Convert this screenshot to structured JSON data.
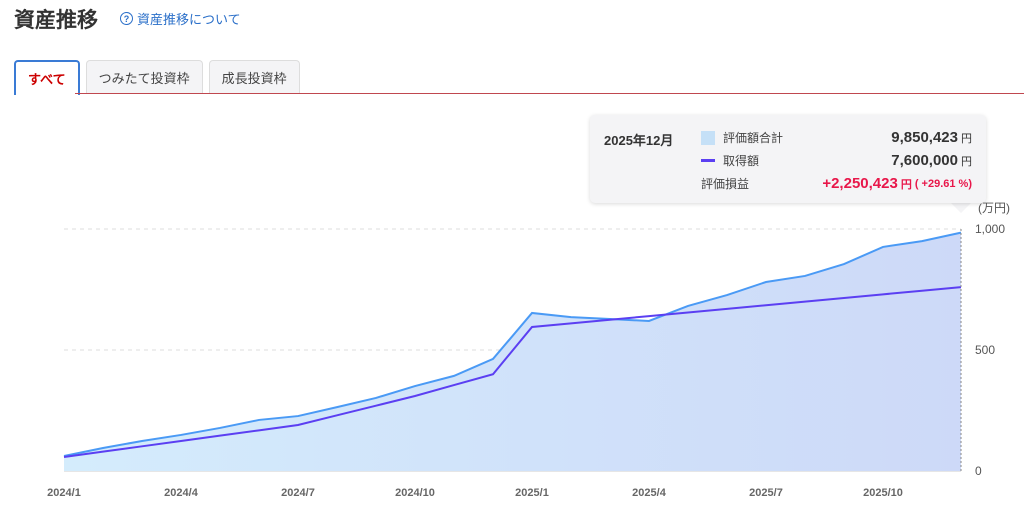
{
  "header": {
    "title": "資産推移",
    "help_link": "資産推移について",
    "help_icon": "question-circle-icon"
  },
  "tabs": [
    {
      "label": "すべて",
      "active": true
    },
    {
      "label": "つみたて投資枠",
      "active": false
    },
    {
      "label": "成長投資枠",
      "active": false
    }
  ],
  "tooltip": {
    "date": "2025年12月",
    "rows": [
      {
        "label": "評価額合計",
        "value": "9,850,423",
        "unit": "円"
      },
      {
        "label": "取得額",
        "value": "7,600,000",
        "unit": "円"
      },
      {
        "label": "評価損益",
        "value": "+2,250,423",
        "unit": "円",
        "pct": "( +29.61 %)"
      }
    ]
  },
  "colors": {
    "value_area": "#c5e0f7",
    "value_line": "#4a9af5",
    "cost_line": "#5b3ff2",
    "gain": "#e8174a"
  },
  "chart_data": {
    "type": "area",
    "yunit": "(万円)",
    "ylim": [
      0,
      1000
    ],
    "yticks": [
      {
        "v": 0,
        "label": "0"
      },
      {
        "v": 500,
        "label": "500"
      },
      {
        "v": 1000,
        "label": "1,000"
      }
    ],
    "x": [
      "2024/1",
      "2024/2",
      "2024/3",
      "2024/4",
      "2024/5",
      "2024/6",
      "2024/7",
      "2024/8",
      "2024/9",
      "2024/10",
      "2024/11",
      "2024/12",
      "2025/1",
      "2025/2",
      "2025/3",
      "2025/4",
      "2025/5",
      "2025/6",
      "2025/7",
      "2025/8",
      "2025/9",
      "2025/10",
      "2025/11",
      "2025/12"
    ],
    "xtick_labels": [
      "2024/1",
      "2024/4",
      "2024/7",
      "2024/10",
      "2025/1",
      "2025/4",
      "2025/7",
      "2025/10"
    ],
    "series": [
      {
        "name": "評価額合計",
        "values": [
          62,
          95,
          124,
          149,
          178,
          211,
          227,
          264,
          302,
          351,
          393,
          463,
          653,
          636,
          628,
          620,
          682,
          727,
          781,
          806,
          855,
          926,
          950,
          985
        ]
      },
      {
        "name": "取得額",
        "values": [
          58,
          80,
          102,
          124,
          146,
          168,
          190,
          230,
          270,
          310,
          355,
          400,
          595,
          610,
          625,
          640,
          655,
          670,
          685,
          700,
          715,
          730,
          745,
          760
        ]
      }
    ]
  }
}
